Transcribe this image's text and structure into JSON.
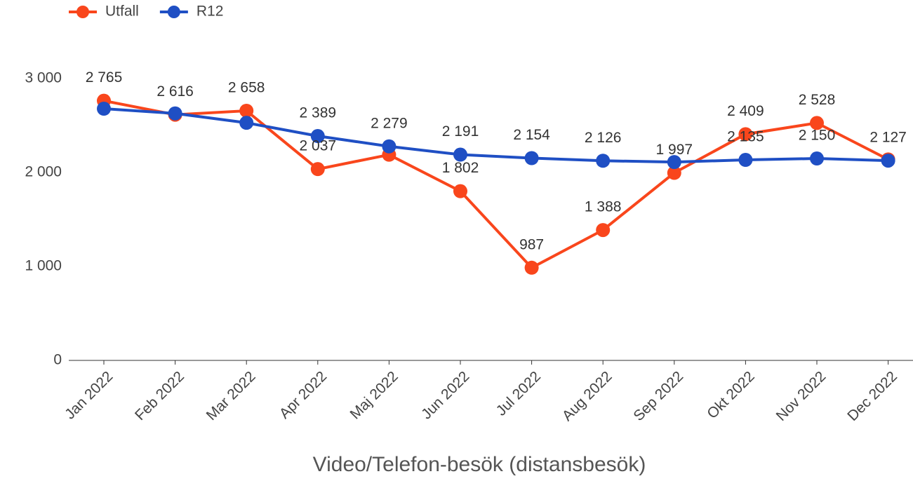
{
  "chart_data": {
    "type": "line",
    "x_label": "Video/Telefon-besök (distansbesök)",
    "categories": [
      "Jan 2022",
      "Feb 2022",
      "Mar 2022",
      "Apr 2022",
      "Maj 2022",
      "Jun 2022",
      "Jul 2022",
      "Aug 2022",
      "Sep 2022",
      "Okt 2022",
      "Nov 2022",
      "Dec 2022"
    ],
    "series": [
      {
        "name": "Utfall",
        "color": "#f9461c",
        "values": [
          2765,
          2616,
          2658,
          2037,
          2190,
          1802,
          987,
          1388,
          1997,
          2409,
          2528,
          2140
        ],
        "value_labels": [
          "2 765",
          "2 616",
          "2 658",
          "2 037",
          null,
          "1 802",
          "987",
          "1 388",
          "1 997",
          "2 409",
          "2 528",
          null
        ]
      },
      {
        "name": "R12",
        "color": "#1f4fc4",
        "values": [
          2680,
          2630,
          2530,
          2389,
          2279,
          2191,
          2154,
          2126,
          2112,
          2135,
          2150,
          2127
        ],
        "value_labels": [
          null,
          null,
          null,
          "2 389",
          "2 279",
          "2 191",
          "2 154",
          "2 126",
          null,
          "2 135",
          "2 150",
          "2 127"
        ]
      }
    ],
    "ylim": [
      0,
      3300
    ],
    "yticks": [
      0,
      {
        "value": 1000,
        "label": "1 000"
      },
      {
        "value": 2000,
        "label": "2 000"
      },
      {
        "value": 3000,
        "label": "3 000"
      }
    ],
    "legend": "top-left"
  }
}
